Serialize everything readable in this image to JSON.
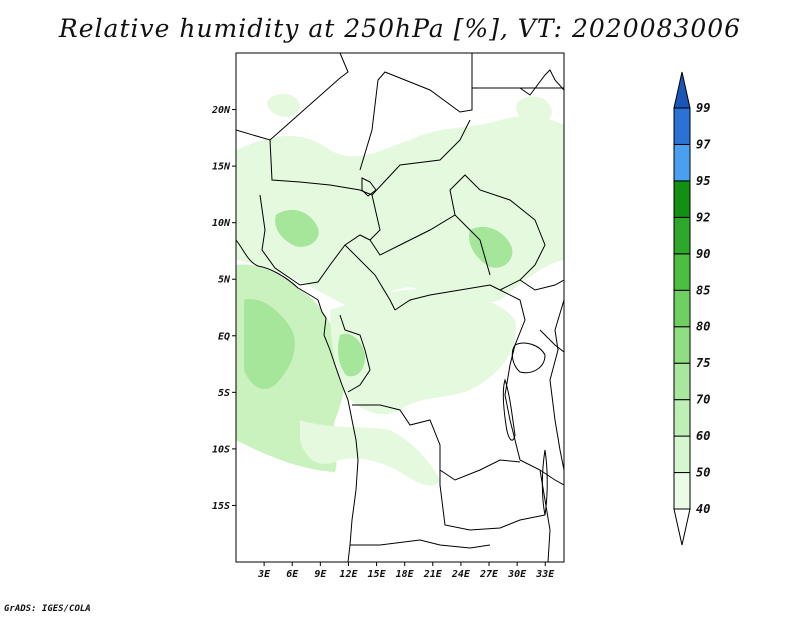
{
  "title": "Relative humidity at 250hPa [%], VT: 2020083006",
  "footer": "GrADS: IGES/COLA",
  "map": {
    "lon_range": [
      0,
      35
    ],
    "lat_range": [
      -20,
      25
    ],
    "lat_ticks": [
      {
        "value": 20,
        "label": "20N"
      },
      {
        "value": 15,
        "label": "15N"
      },
      {
        "value": 10,
        "label": "10N"
      },
      {
        "value": 5,
        "label": "5N"
      },
      {
        "value": 0,
        "label": "EQ"
      },
      {
        "value": -5,
        "label": "5S"
      },
      {
        "value": -10,
        "label": "10S"
      },
      {
        "value": -15,
        "label": "15S"
      }
    ],
    "lon_ticks": [
      {
        "value": 3,
        "label": "3E"
      },
      {
        "value": 6,
        "label": "6E"
      },
      {
        "value": 9,
        "label": "9E"
      },
      {
        "value": 12,
        "label": "12E"
      },
      {
        "value": 15,
        "label": "15E"
      },
      {
        "value": 18,
        "label": "18E"
      },
      {
        "value": 21,
        "label": "21E"
      },
      {
        "value": 24,
        "label": "24E"
      },
      {
        "value": 27,
        "label": "27E"
      },
      {
        "value": 30,
        "label": "30E"
      },
      {
        "value": 33,
        "label": "33E"
      }
    ]
  },
  "colorbar": {
    "levels": [
      "40",
      "50",
      "60",
      "70",
      "75",
      "80",
      "85",
      "90",
      "92",
      "95",
      "97",
      "99"
    ],
    "colors": [
      "#ffffff",
      "#eafce6",
      "#d6f6cf",
      "#c0efb6",
      "#a8e79c",
      "#8fde82",
      "#6fd062",
      "#4cbf40",
      "#2ea82a",
      "#138f14",
      "#4a9ff0",
      "#2a72d6",
      "#1a56b8"
    ]
  },
  "humidity_colors": {
    "low": "#e4f9de",
    "mid": "#c9f2be",
    "high": "#a6e69a"
  }
}
